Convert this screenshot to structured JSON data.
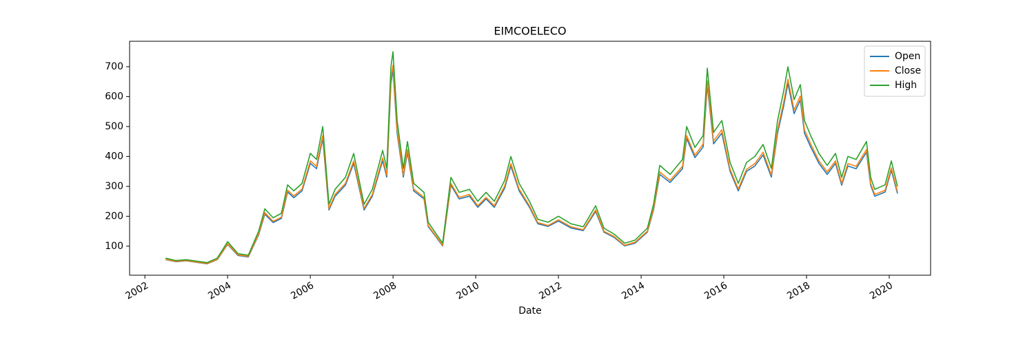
{
  "chart_data": {
    "type": "line",
    "title": "EIMCOELECO",
    "xlabel": "Date",
    "x": [
      2002.5,
      2002.75,
      2003.0,
      2003.25,
      2003.5,
      2003.75,
      2004.0,
      2004.25,
      2004.5,
      2004.75,
      2004.9,
      2005.1,
      2005.3,
      2005.45,
      2005.6,
      2005.8,
      2006.0,
      2006.15,
      2006.3,
      2006.45,
      2006.6,
      2006.85,
      2007.05,
      2007.3,
      2007.5,
      2007.75,
      2007.85,
      2007.95,
      2008.0,
      2008.1,
      2008.25,
      2008.35,
      2008.5,
      2008.75,
      2008.85,
      2009.05,
      2009.2,
      2009.4,
      2009.6,
      2009.85,
      2010.05,
      2010.25,
      2010.45,
      2010.7,
      2010.85,
      2011.05,
      2011.3,
      2011.5,
      2011.75,
      2012.0,
      2012.3,
      2012.6,
      2012.9,
      2013.1,
      2013.35,
      2013.6,
      2013.85,
      2014.15,
      2014.3,
      2014.45,
      2014.7,
      2015.0,
      2015.1,
      2015.3,
      2015.5,
      2015.6,
      2015.75,
      2015.95,
      2016.15,
      2016.35,
      2016.55,
      2016.75,
      2016.95,
      2017.15,
      2017.3,
      2017.45,
      2017.55,
      2017.7,
      2017.85,
      2017.95,
      2018.1,
      2018.3,
      2018.5,
      2018.7,
      2018.85,
      2019.0,
      2019.2,
      2019.45,
      2019.55,
      2019.65,
      2019.9,
      2020.05,
      2020.2
    ],
    "series": [
      {
        "name": "Open",
        "color": "#1f77b4",
        "values": [
          55,
          48,
          51,
          46,
          41,
          55,
          106,
          69,
          64,
          138,
          207,
          179,
          193,
          281,
          262,
          285,
          377,
          359,
          460,
          221,
          267,
          304,
          377,
          221,
          267,
          386,
          331,
          644,
          690,
          478,
          331,
          414,
          285,
          258,
          166,
          129,
          101,
          304,
          258,
          267,
          230,
          258,
          230,
          294,
          368,
          285,
          230,
          175,
          166,
          184,
          161,
          152,
          216,
          147,
          129,
          101,
          110,
          147,
          221,
          340,
          313,
          359,
          460,
          396,
          432,
          639,
          442,
          478,
          350,
          285,
          350,
          368,
          405,
          331,
          478,
          570,
          644,
          543,
          589,
          478,
          432,
          377,
          340,
          377,
          304,
          368,
          359,
          414,
          304,
          267,
          281,
          354,
          276
        ]
      },
      {
        "name": "Close",
        "color": "#ff7f0e",
        "values": [
          56,
          49,
          52,
          47,
          42,
          56,
          108,
          71,
          66,
          141,
          212,
          183,
          197,
          287,
          268,
          291,
          385,
          367,
          470,
          226,
          273,
          310,
          385,
          226,
          273,
          395,
          338,
          658,
          705,
          489,
          338,
          423,
          291,
          263,
          169,
          132,
          103,
          310,
          263,
          273,
          235,
          263,
          235,
          301,
          376,
          291,
          235,
          179,
          169,
          188,
          165,
          155,
          221,
          150,
          132,
          103,
          113,
          150,
          226,
          348,
          320,
          367,
          470,
          404,
          442,
          653,
          451,
          489,
          357,
          291,
          357,
          376,
          414,
          338,
          489,
          583,
          658,
          555,
          602,
          489,
          442,
          385,
          348,
          385,
          310,
          376,
          367,
          423,
          310,
          273,
          287,
          362,
          282
        ]
      },
      {
        "name": "High",
        "color": "#2ca02c",
        "values": [
          60,
          52,
          55,
          50,
          45,
          60,
          115,
          75,
          70,
          150,
          225,
          195,
          210,
          305,
          285,
          310,
          410,
          390,
          500,
          240,
          290,
          330,
          410,
          240,
          290,
          420,
          360,
          700,
          750,
          520,
          360,
          450,
          310,
          280,
          180,
          140,
          110,
          330,
          280,
          290,
          250,
          280,
          250,
          320,
          400,
          310,
          250,
          190,
          180,
          200,
          175,
          165,
          235,
          160,
          140,
          110,
          120,
          160,
          240,
          370,
          340,
          390,
          500,
          430,
          470,
          695,
          480,
          520,
          380,
          310,
          380,
          400,
          440,
          360,
          520,
          620,
          700,
          590,
          640,
          520,
          470,
          410,
          370,
          410,
          330,
          400,
          390,
          450,
          330,
          290,
          305,
          385,
          300
        ]
      }
    ],
    "xlim": [
      2001.63,
      2021.0
    ],
    "xticks": [
      2002,
      2004,
      2006,
      2008,
      2010,
      2012,
      2014,
      2016,
      2018,
      2020
    ],
    "ylim": [
      3,
      785
    ],
    "yticks": [
      100,
      200,
      300,
      400,
      500,
      600,
      700
    ],
    "legend": "upper right"
  }
}
